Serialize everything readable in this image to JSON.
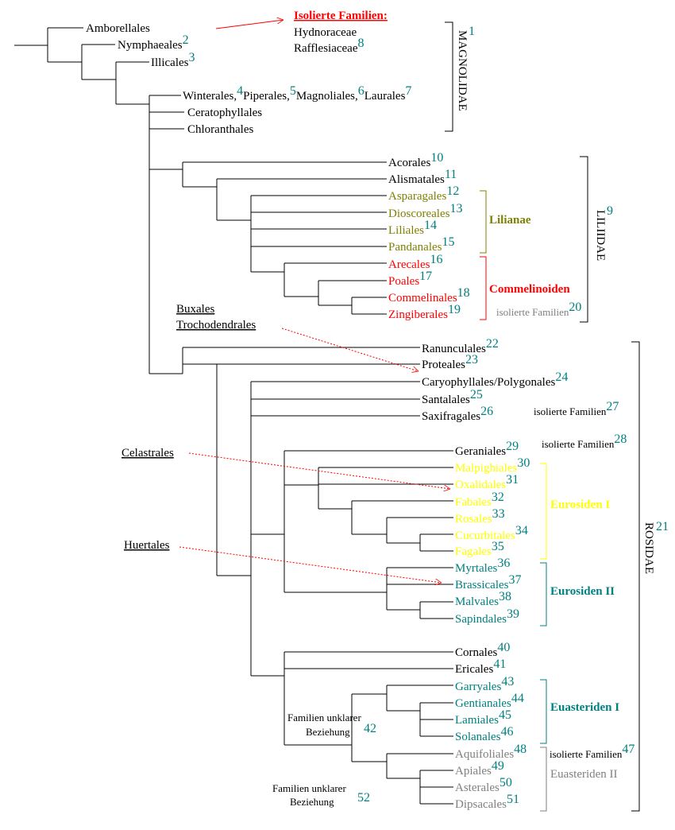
{
  "isolated_families": {
    "title": "Isolierte Familien:",
    "items": [
      {
        "name": "Hydnoraceae"
      },
      {
        "name": "Rafflesiaceae",
        "number": "8"
      }
    ]
  },
  "winterales_line": [
    {
      "name": "Winterales,",
      "number": "4"
    },
    {
      "name": "Piperales,",
      "number": "5"
    },
    {
      "name": "Magnoliales,",
      "number": "6"
    },
    {
      "name": "Laurales",
      "number": "7"
    }
  ],
  "taxa": [
    {
      "name": "Amborellales"
    },
    {
      "name": "Nymphaeales",
      "number": "2"
    },
    {
      "name": "Illicales",
      "number": "3"
    },
    {
      "name": "Ceratophyllales"
    },
    {
      "name": "Chloranthales"
    },
    {
      "name": "Acorales",
      "number": "10"
    },
    {
      "name": "Alismatales",
      "number": "11"
    },
    {
      "name": "Asparagales",
      "number": "12"
    },
    {
      "name": "Dioscoreales",
      "number": "13"
    },
    {
      "name": "Liliales",
      "number": "14"
    },
    {
      "name": "Pandanales",
      "number": "15"
    },
    {
      "name": "Arecales",
      "number": "16"
    },
    {
      "name": "Poales",
      "number": "17"
    },
    {
      "name": "Commelinales",
      "number": "18"
    },
    {
      "name": "Zingiberales",
      "number": "19"
    },
    {
      "name": "Ranunculales",
      "number": "22"
    },
    {
      "name": "Proteales",
      "number": "23"
    },
    {
      "name": "Caryophyllales/Polygonales",
      "number": "24"
    },
    {
      "name": "Santalales",
      "number": "25"
    },
    {
      "name": "Saxifragales",
      "number": "26"
    },
    {
      "name": "Geraniales",
      "number": "29"
    },
    {
      "name": "Malpighiales",
      "number": "30"
    },
    {
      "name": "Oxalidales",
      "number": "31"
    },
    {
      "name": "Fabales",
      "number": "32"
    },
    {
      "name": "Rosales",
      "number": "33"
    },
    {
      "name": "Cucurbitales",
      "number": "34"
    },
    {
      "name": "Fagales",
      "number": "35"
    },
    {
      "name": "Myrtales",
      "number": "36"
    },
    {
      "name": "Brassicales",
      "number": "37"
    },
    {
      "name": "Malvales",
      "number": "38"
    },
    {
      "name": "Sapindales",
      "number": "39"
    },
    {
      "name": "Cornales",
      "number": "40"
    },
    {
      "name": "Ericales",
      "number": "41"
    },
    {
      "name": "Garryales",
      "number": "43"
    },
    {
      "name": "Gentianales",
      "number": "44"
    },
    {
      "name": "Lamiales",
      "number": "45"
    },
    {
      "name": "Solanales",
      "number": "46"
    },
    {
      "name": "Aquifoliales",
      "number": "48"
    },
    {
      "name": "Apiales",
      "number": "49"
    },
    {
      "name": "Asterales",
      "number": "50"
    },
    {
      "name": "Dipsacales",
      "number": "51"
    }
  ],
  "groups": [
    {
      "name": "Lilianae"
    },
    {
      "name": "Commelinoiden"
    },
    {
      "name": "Eurosiden I"
    },
    {
      "name": "Eurosiden II"
    },
    {
      "name": "Euasteriden I"
    },
    {
      "name": "Euasteriden II"
    }
  ],
  "isolated_notes": [
    {
      "name": "isolierte Familien",
      "number": "20"
    },
    {
      "name": "isolierte Familien",
      "number": "27"
    },
    {
      "name": "isolierte Familien",
      "number": "28"
    },
    {
      "name": "isolierte Familien",
      "number": "47"
    }
  ],
  "subclasses": [
    {
      "name": "MAGNOLIDAE",
      "number": "1"
    },
    {
      "name": "LILIIDAE",
      "number": "9"
    },
    {
      "name": "ROSIDAE",
      "number": "21"
    }
  ],
  "moved_orders": [
    "Buxales",
    "Trochodendrales",
    "Celastrales",
    "Huertales"
  ],
  "unclear_relations": [
    {
      "lines": [
        "Familien unklarer",
        "Beziehung"
      ],
      "number": "42"
    },
    {
      "lines": [
        "Familien unklarer",
        "Beziehung"
      ],
      "number": "52"
    }
  ]
}
